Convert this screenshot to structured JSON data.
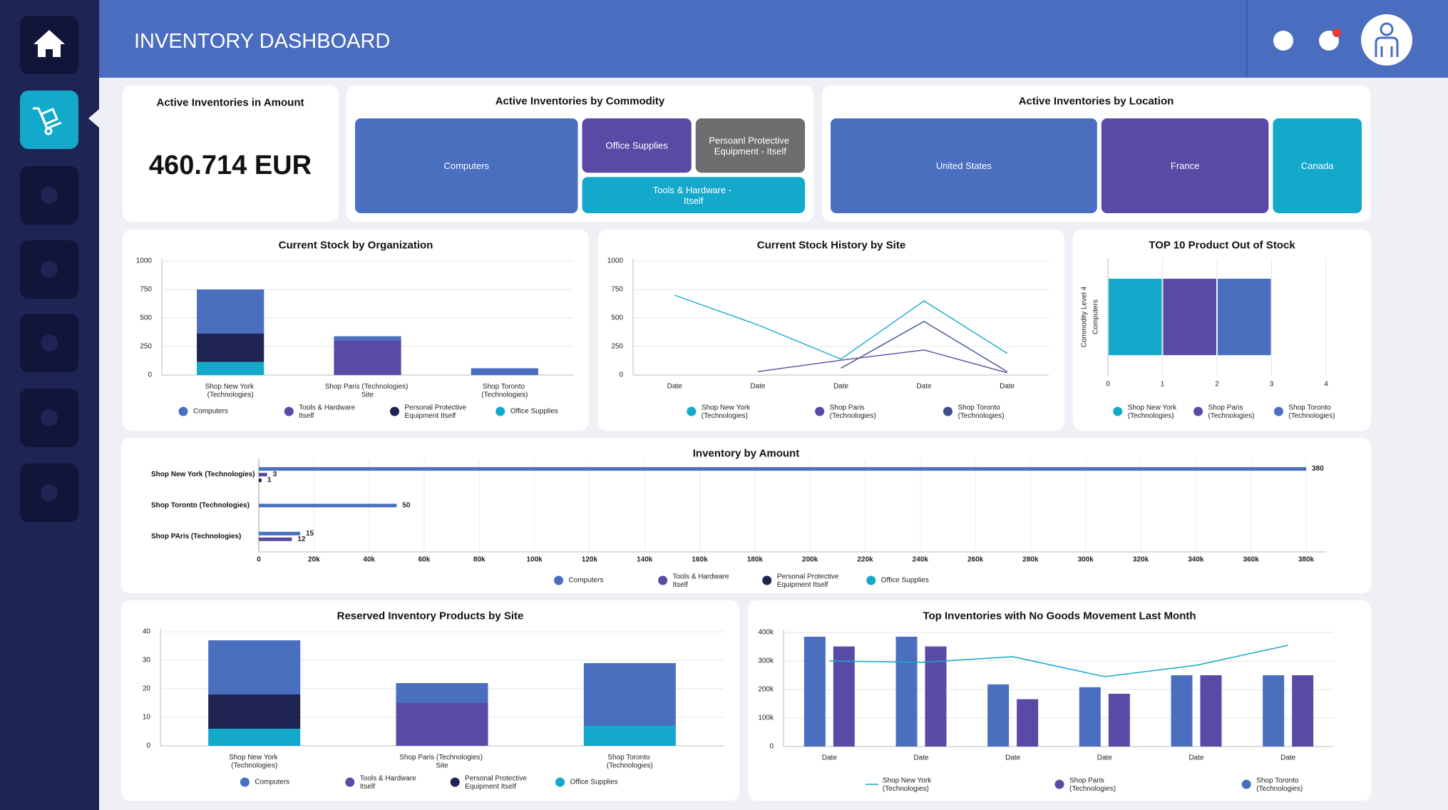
{
  "header": {
    "title": "INVENTORY DASHBOARD"
  },
  "kpi": {
    "title": "Active Inventories in Amount",
    "value": "460.714 EUR"
  },
  "chart_data": [
    {
      "type": "treemap",
      "title": "Active Inventories by Commodity",
      "categories": [
        "Computers",
        "Office Supplies",
        "Persoanl Protective Equipment - Itself",
        "Tools & Hardware - Itself"
      ],
      "values": [
        50,
        15,
        15,
        20
      ],
      "colors": [
        "#4a6fbf",
        "#5a4aa5",
        "#6e6e6e",
        "#14a9cb"
      ]
    },
    {
      "type": "treemap",
      "title": "Active Inventories by Location",
      "categories": [
        "United States",
        "France",
        "Canada"
      ],
      "values": [
        51,
        32,
        17
      ],
      "colors": [
        "#4a6fbf",
        "#5a4aa5",
        "#14a9cb"
      ]
    },
    {
      "type": "bar",
      "orientation": "vertical",
      "stacked": true,
      "title": "Current Stock by Organization",
      "categories": [
        "Shop New York (Technologies)",
        "Shop Paris (Technologies) Site",
        "Shop Toronto (Technologies)"
      ],
      "series": [
        {
          "name": "Computers",
          "color": "#4a6fbf",
          "values": [
            385,
            40,
            60
          ]
        },
        {
          "name": "Tools & Hardware Itself",
          "color": "#5a4aa5",
          "values": [
            0,
            300,
            0
          ]
        },
        {
          "name": "Personal Protective Equipment Itself",
          "color": "#1f2453",
          "values": [
            250,
            0,
            0
          ]
        },
        {
          "name": "Office Supplies",
          "color": "#14a9cb",
          "values": [
            115,
            0,
            0
          ]
        }
      ],
      "ylim": [
        0,
        1000
      ],
      "yticks": [
        0,
        250,
        500,
        750,
        1000
      ],
      "grid": true
    },
    {
      "type": "line",
      "title": "Current Stock History by Site",
      "categories": [
        "Date",
        "Date",
        "Date",
        "Date",
        "Date"
      ],
      "series": [
        {
          "name": "Shop New York (Technologies)",
          "color": "#14a9cb",
          "values": [
            700,
            440,
            140,
            650,
            190
          ]
        },
        {
          "name": "Shop Paris (Technologies)",
          "color": "#5a4aa5",
          "values": [
            null,
            30,
            130,
            220,
            20
          ]
        },
        {
          "name": "Shop Toronto (Technologies)",
          "color": "#3c4f8f",
          "values": [
            null,
            null,
            60,
            470,
            30
          ]
        }
      ],
      "ylim": [
        0,
        1000
      ],
      "yticks": [
        0,
        250,
        500,
        750,
        1000
      ],
      "grid": true
    },
    {
      "type": "bar",
      "orientation": "horizontal",
      "stacked": true,
      "title": "TOP 10 Product Out of Stock",
      "ylabel": "Commodity Level 4",
      "categories": [
        "Computers"
      ],
      "series": [
        {
          "name": "Shop New York (Technologies)",
          "color": "#14a9cb",
          "values": [
            1
          ]
        },
        {
          "name": "Shop Paris (Technologies)",
          "color": "#5a4aa5",
          "values": [
            1
          ]
        },
        {
          "name": "Shop Toronto (Technologies)",
          "color": "#4a6fbf",
          "values": [
            1
          ]
        }
      ],
      "xlim": [
        0,
        4
      ],
      "xticks": [
        0,
        1,
        2,
        3,
        4
      ],
      "grid": true
    },
    {
      "type": "bar",
      "orientation": "horizontal",
      "stacked": false,
      "title": "Inventory by Amount",
      "categories": [
        "Shop New York (Technologies)",
        "Shop Toronto (Technologies)",
        "Shop PAris (Technologies)"
      ],
      "series": [
        {
          "name": "Computers",
          "color": "#4a6fbf",
          "values": [
            380000,
            50000,
            15000
          ],
          "value_labels": [
            "380",
            "50",
            "15"
          ]
        },
        {
          "name": "Tools & Hardware Itself",
          "color": "#5a4aa5",
          "values": [
            3000,
            null,
            12000
          ],
          "value_labels": [
            "3",
            null,
            "12"
          ]
        },
        {
          "name": "Personal Protective Equipment Itself",
          "color": "#1f2453",
          "values": [
            1000,
            null,
            null
          ],
          "value_labels": [
            "1",
            null,
            null
          ]
        },
        {
          "name": "Office Supplies",
          "color": "#14a9cb",
          "values": [
            null,
            null,
            null
          ],
          "value_labels": [
            null,
            null,
            null
          ]
        }
      ],
      "xlim": [
        0,
        380000
      ],
      "xticks": [
        0,
        {
          "value": 20000,
          "label": "20k"
        },
        {
          "value": 40000,
          "label": "40k"
        },
        {
          "value": 60000,
          "label": "60k"
        },
        {
          "value": 80000,
          "label": "80k"
        },
        {
          "value": 100000,
          "label": "100k"
        },
        {
          "value": 120000,
          "label": "120k"
        },
        {
          "value": 140000,
          "label": "140k"
        },
        {
          "value": 160000,
          "label": "160k"
        },
        {
          "value": 180000,
          "label": "180k"
        },
        {
          "value": 200000,
          "label": "200k"
        },
        {
          "value": 220000,
          "label": "220k"
        },
        {
          "value": 240000,
          "label": "240k"
        },
        {
          "value": 260000,
          "label": "260k"
        },
        {
          "value": 280000,
          "label": "280k"
        },
        {
          "value": 300000,
          "label": "300k"
        },
        {
          "value": 320000,
          "label": "320k"
        },
        {
          "value": 340000,
          "label": "340k"
        },
        {
          "value": 360000,
          "label": "360k"
        },
        {
          "value": 380000,
          "label": "380k"
        }
      ],
      "grid": true
    },
    {
      "type": "bar",
      "orientation": "vertical",
      "stacked": true,
      "title": "Reserved Inventory Products by Site",
      "categories": [
        "Shop New York (Technologies)",
        "Shop Paris (Technologies) Site",
        "Shop Toronto (Technologies)"
      ],
      "series": [
        {
          "name": "Computers",
          "color": "#4a6fbf",
          "values": [
            19,
            7,
            22
          ]
        },
        {
          "name": "Tools & Hardware Itself",
          "color": "#5a4aa5",
          "values": [
            0,
            15,
            0
          ]
        },
        {
          "name": "Personal Protective Equipment Itself",
          "color": "#1f2453",
          "values": [
            12,
            0,
            0
          ]
        },
        {
          "name": "Office Supplies",
          "color": "#14a9cb",
          "values": [
            6,
            0,
            7
          ]
        }
      ],
      "ylim": [
        0,
        40
      ],
      "yticks": [
        0,
        10,
        20,
        30,
        40
      ],
      "grid": true
    },
    {
      "type": "combo",
      "title": "Top Inventories with No Goods Movement Last Month",
      "categories": [
        "Date",
        "Date",
        "Date",
        "Date",
        "Date",
        "Date"
      ],
      "series": [
        {
          "name": "Shop New York (Technologies)",
          "type": "line",
          "color": "#14a9cb",
          "values": [
            300000,
            295000,
            315000,
            245000,
            285000,
            355000
          ]
        },
        {
          "name": "Shop Paris (Technologies)",
          "type": "bar",
          "color": "#5a4aa5",
          "values": [
            351000,
            351000,
            166000,
            185000,
            250000,
            250000
          ]
        },
        {
          "name": "Shop Toronto (Technologies)",
          "type": "bar",
          "color": "#4a6fbf",
          "values": [
            385000,
            385000,
            218000,
            208000,
            250000,
            250000
          ]
        }
      ],
      "ylim": [
        0,
        400000
      ],
      "yticks": [
        0,
        {
          "value": 100000,
          "label": "100k"
        },
        {
          "value": 200000,
          "label": "200k"
        },
        {
          "value": 300000,
          "label": "300k"
        },
        {
          "value": 400000,
          "label": "400k"
        }
      ],
      "grid": true
    }
  ]
}
